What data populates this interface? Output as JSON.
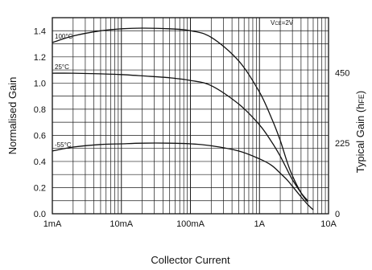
{
  "chart_data": {
    "type": "line",
    "xscale": "log",
    "xlabel": "Collector Current",
    "ylabel_left": "Normalised Gain",
    "ylabel_right_main": "Typical Gain  (h",
    "ylabel_right_sub": "FE",
    "ylabel_right_end": ")",
    "xlim": [
      "1mA",
      "10A"
    ],
    "xlim_amps": [
      0.001,
      10
    ],
    "ylim": [
      0,
      1.5
    ],
    "x_ticks": [
      {
        "label": "1mA",
        "amps": 0.001
      },
      {
        "label": "10mA",
        "amps": 0.01
      },
      {
        "label": "100mA",
        "amps": 0.1
      },
      {
        "label": "1A",
        "amps": 1
      },
      {
        "label": "10A",
        "amps": 10
      }
    ],
    "y_ticks_left": [
      "0.0",
      "0.2",
      "0.4",
      "0.6",
      "0.8",
      "1.0",
      "1.2",
      "1.4"
    ],
    "y_ticks_left_values": [
      0,
      0.2,
      0.4,
      0.6,
      0.8,
      1.0,
      1.2,
      1.4
    ],
    "y_ticks_right": [
      {
        "label": "0",
        "normalised": 0
      },
      {
        "label": "225",
        "normalised": 0.54
      },
      {
        "label": "450",
        "normalised": 1.08
      }
    ],
    "grid": true,
    "annotation": {
      "text_main": "V",
      "text_sub": "CE",
      "text_end": "=2V",
      "placement": "top-right"
    },
    "series": [
      {
        "name": "100°C",
        "x": [
          0.001,
          0.002,
          0.005,
          0.01,
          0.02,
          0.05,
          0.1,
          0.2,
          0.5,
          1,
          1.5,
          2,
          2.5,
          3,
          4,
          5
        ],
        "y": [
          1.31,
          1.36,
          1.4,
          1.415,
          1.42,
          1.415,
          1.4,
          1.35,
          1.17,
          0.93,
          0.73,
          0.56,
          0.4,
          0.29,
          0.16,
          0.09
        ]
      },
      {
        "name": "25°C",
        "x": [
          0.001,
          0.002,
          0.005,
          0.01,
          0.02,
          0.05,
          0.1,
          0.2,
          0.5,
          1,
          1.5,
          2,
          2.5,
          3,
          4,
          5
        ],
        "y": [
          1.075,
          1.075,
          1.07,
          1.065,
          1.055,
          1.04,
          1.02,
          0.98,
          0.84,
          0.68,
          0.55,
          0.44,
          0.34,
          0.26,
          0.16,
          0.1
        ]
      },
      {
        "name": "-55°C",
        "x": [
          0.001,
          0.002,
          0.005,
          0.01,
          0.02,
          0.05,
          0.1,
          0.2,
          0.5,
          1,
          1.5,
          2,
          2.5,
          3,
          4,
          5,
          6
        ],
        "y": [
          0.48,
          0.51,
          0.53,
          0.535,
          0.54,
          0.54,
          0.535,
          0.52,
          0.48,
          0.42,
          0.37,
          0.31,
          0.26,
          0.21,
          0.13,
          0.07,
          0.03
        ]
      }
    ]
  }
}
